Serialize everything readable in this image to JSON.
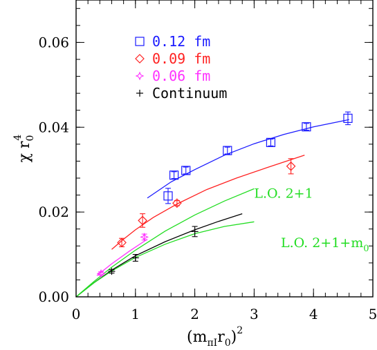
{
  "chart_data": {
    "type": "scatter",
    "xlabel": "(m",
    "xlabel_sub": "πI",
    "xlabel_mid": "r",
    "xlabel_sub2": "0",
    "xlabel_end": ")",
    "xlabel_sup": "2",
    "ylabel": "χ r",
    "ylabel_sub": "0",
    "ylabel_sup": "4",
    "xlim": [
      0,
      5
    ],
    "ylim": [
      0,
      0.07
    ],
    "x_ticks": [
      0,
      1,
      2,
      3,
      4,
      5
    ],
    "x_tick_labels": [
      "0",
      "1",
      "2",
      "3",
      "4",
      "5"
    ],
    "y_ticks": [
      0,
      0.02,
      0.04,
      0.06
    ],
    "y_tick_labels": [
      "0.00",
      "0.02",
      "0.04",
      "0.06"
    ],
    "legend_position": "top-left",
    "series": [
      {
        "name": "0.12 fm",
        "color": "#1a1aff",
        "marker": "square",
        "points": [
          {
            "x": 1.55,
            "y": 0.0238,
            "err": 0.0018
          },
          {
            "x": 1.65,
            "y": 0.0287,
            "err": 0.0008
          },
          {
            "x": 1.85,
            "y": 0.0298,
            "err": 0.0008
          },
          {
            "x": 2.55,
            "y": 0.0345,
            "err": 0.0008
          },
          {
            "x": 3.28,
            "y": 0.0364,
            "err": 0.0008
          },
          {
            "x": 3.88,
            "y": 0.0401,
            "err": 0.0008
          },
          {
            "x": 4.58,
            "y": 0.0421,
            "err": 0.0015
          }
        ]
      },
      {
        "name": "0.09 fm",
        "color": "#ff2020",
        "marker": "diamond",
        "points": [
          {
            "x": 0.77,
            "y": 0.0128,
            "err": 0.001
          },
          {
            "x": 1.12,
            "y": 0.018,
            "err": 0.0016
          },
          {
            "x": 1.7,
            "y": 0.0221,
            "err": 0.0006
          },
          {
            "x": 3.62,
            "y": 0.0308,
            "err": 0.0018
          }
        ]
      },
      {
        "name": "0.06 fm",
        "color": "#ff30ff",
        "marker": "star",
        "points": [
          {
            "x": 0.42,
            "y": 0.0055,
            "err": 0.0004
          },
          {
            "x": 1.15,
            "y": 0.0141,
            "err": 0.0007
          }
        ]
      },
      {
        "name": "Continuum",
        "color": "#000000",
        "marker": "plus",
        "points": [
          {
            "x": 0.6,
            "y": 0.006,
            "err": 0.0004
          },
          {
            "x": 1.0,
            "y": 0.0092,
            "err": 0.0008
          },
          {
            "x": 2.0,
            "y": 0.0154,
            "err": 0.0012
          }
        ]
      }
    ],
    "curves": [
      {
        "color": "#1a1aff",
        "x": [
          1.2,
          1.6,
          2.0,
          2.5,
          3.0,
          3.5,
          4.0,
          4.6
        ],
        "y": [
          0.0233,
          0.0271,
          0.03,
          0.0334,
          0.0361,
          0.0383,
          0.0401,
          0.0418
        ]
      },
      {
        "color": "#ff2020",
        "x": [
          0.6,
          0.8,
          1.0,
          1.3,
          1.7,
          2.2,
          2.7,
          3.2,
          3.85
        ],
        "y": [
          0.0112,
          0.0136,
          0.0158,
          0.0187,
          0.0219,
          0.0253,
          0.028,
          0.0304,
          0.0334
        ]
      },
      {
        "color": "#ff30ff",
        "x": [
          0.35,
          0.6,
          0.9,
          1.2
        ],
        "y": [
          0.005,
          0.0078,
          0.0108,
          0.0136
        ]
      },
      {
        "color": "#000000",
        "x": [
          0.0,
          0.3,
          0.6,
          1.0,
          1.5,
          2.0,
          2.4,
          2.8
        ],
        "y": [
          0.0,
          0.0033,
          0.0063,
          0.0097,
          0.013,
          0.0158,
          0.0178,
          0.0196
        ]
      },
      {
        "color": "#22dd22",
        "x": [
          0.0,
          0.3,
          0.6,
          1.0,
          1.5,
          2.0,
          2.5,
          3.0
        ],
        "y": [
          0.0,
          0.0036,
          0.007,
          0.011,
          0.0155,
          0.0193,
          0.0226,
          0.0255
        ]
      },
      {
        "color": "#22dd22",
        "x": [
          0.0,
          0.3,
          0.6,
          1.0,
          1.5,
          2.0,
          2.5,
          3.0
        ],
        "y": [
          0.0,
          0.0033,
          0.0061,
          0.0093,
          0.0124,
          0.0149,
          0.0166,
          0.0177
        ]
      }
    ],
    "annotations": [
      {
        "text": "L.O. 2+1",
        "x": 3.0,
        "y": 0.0234,
        "color": "#22dd22"
      },
      {
        "text": "L.O. 2+1+m",
        "sub": "0",
        "x": 3.45,
        "y": 0.0117,
        "color": "#22dd22"
      }
    ]
  }
}
